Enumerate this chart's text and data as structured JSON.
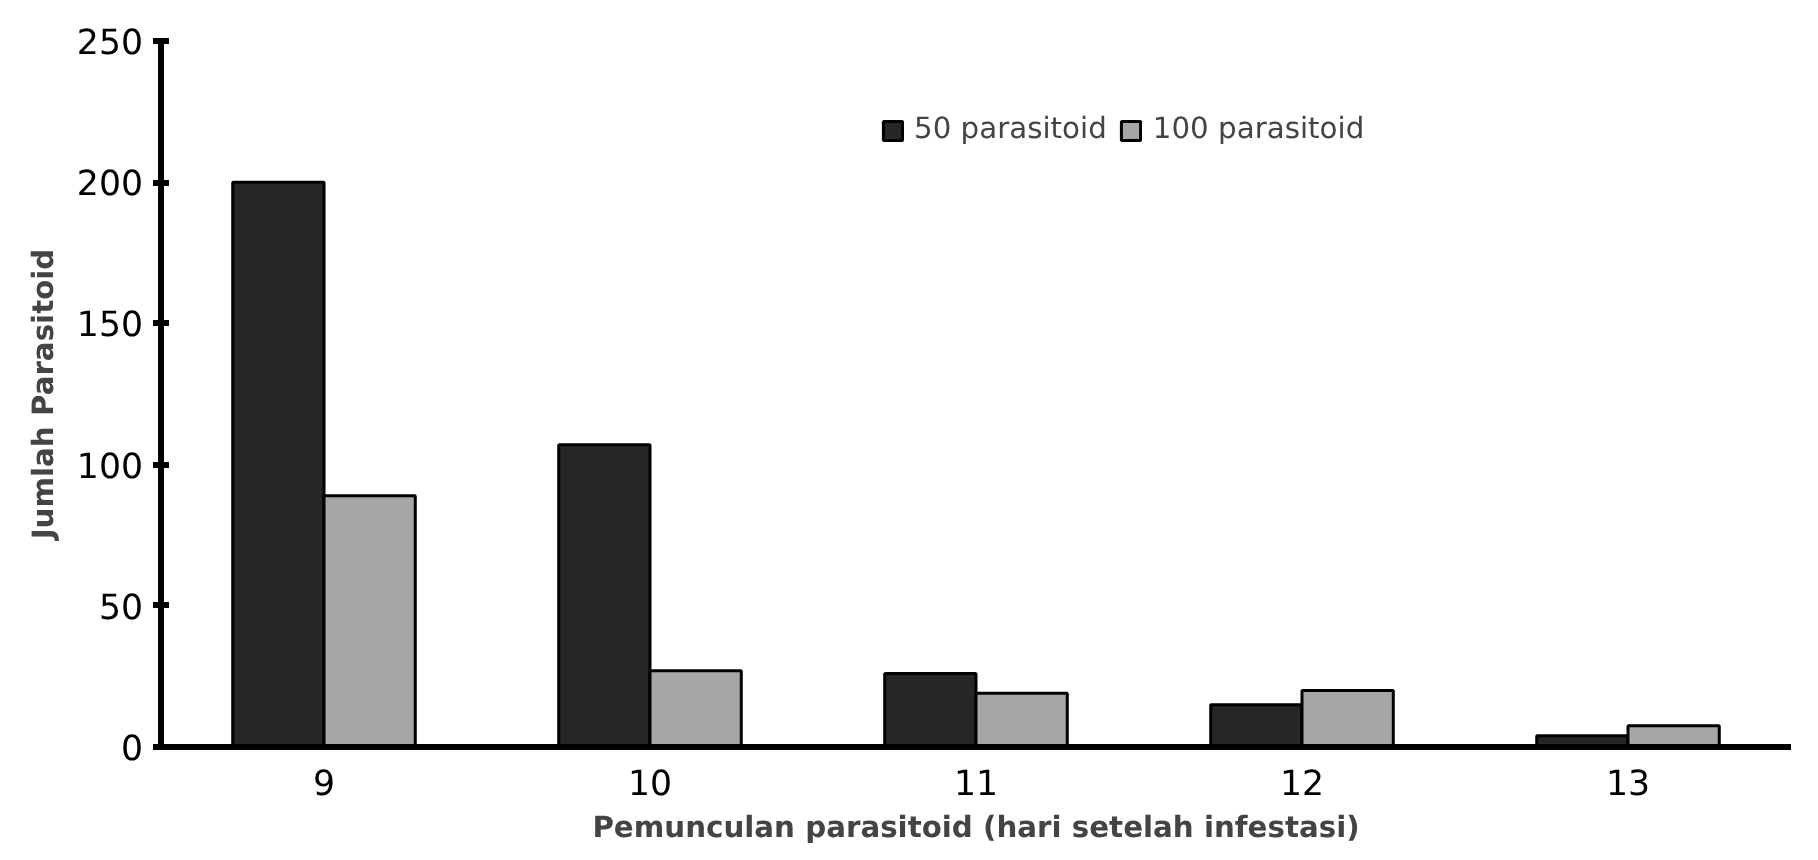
{
  "chart_data": {
    "type": "bar",
    "xlabel": "Pemunculan parasitoid (hari setelah infestasi)",
    "ylabel": "Jumlah Parasitoid",
    "categories": [
      "9",
      "10",
      "11",
      "12",
      "13"
    ],
    "series": [
      {
        "name": "50 parasitoid",
        "color": "#262626",
        "values": [
          200,
          107,
          26,
          15,
          4
        ]
      },
      {
        "name": "100 parasitoid",
        "color": "#a6a6a6",
        "values": [
          89,
          27,
          19,
          20,
          7.5
        ]
      }
    ],
    "ylim": [
      0,
      250
    ],
    "yticks": [
      0,
      50,
      100,
      150,
      200,
      250
    ],
    "grid": false,
    "legend": "top right"
  }
}
